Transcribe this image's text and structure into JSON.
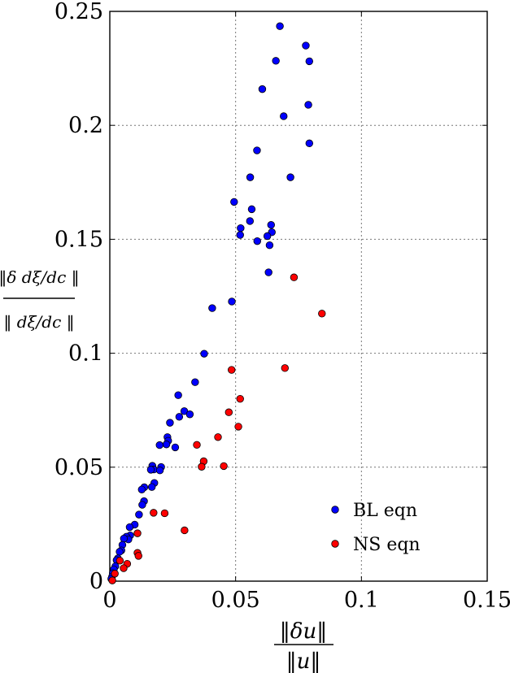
{
  "chart_data": {
    "type": "scatter",
    "xlabel": {
      "numerator": "‖δu‖",
      "denominator": "‖u‖"
    },
    "ylabel": {
      "numerator": "‖δ dξ/dc ‖",
      "denominator": "‖ dξ/dc ‖"
    },
    "xlim": [
      0,
      0.15
    ],
    "ylim": [
      0,
      0.25
    ],
    "x_ticks": [
      "0",
      "0.05",
      "0.1",
      "0.15"
    ],
    "y_ticks": [
      "0",
      "0.05",
      "0.1",
      "0.15",
      "0.2",
      "0.25"
    ],
    "grid": true,
    "legend_position": "bottom-right",
    "series": [
      {
        "name": "BL eqn",
        "color": "#0000ff",
        "points": [
          [
            0.0676,
            0.2435
          ],
          [
            0.0779,
            0.235
          ],
          [
            0.066,
            0.2283
          ],
          [
            0.0793,
            0.2281
          ],
          [
            0.0606,
            0.2159
          ],
          [
            0.0789,
            0.209
          ],
          [
            0.0691,
            0.204
          ],
          [
            0.0793,
            0.1921
          ],
          [
            0.0585,
            0.189
          ],
          [
            0.0558,
            0.1772
          ],
          [
            0.0718,
            0.1772
          ],
          [
            0.0494,
            0.1664
          ],
          [
            0.0564,
            0.1632
          ],
          [
            0.0557,
            0.158
          ],
          [
            0.0641,
            0.1563
          ],
          [
            0.052,
            0.1549
          ],
          [
            0.0644,
            0.1531
          ],
          [
            0.0626,
            0.1514
          ],
          [
            0.0518,
            0.1519
          ],
          [
            0.0586,
            0.1492
          ],
          [
            0.0635,
            0.1474
          ],
          [
            0.0631,
            0.1355
          ],
          [
            0.0485,
            0.1227
          ],
          [
            0.0407,
            0.1198
          ],
          [
            0.0375,
            0.0998
          ],
          [
            0.0339,
            0.0873
          ],
          [
            0.0272,
            0.0816
          ],
          [
            0.0296,
            0.0746
          ],
          [
            0.0318,
            0.0732
          ],
          [
            0.0276,
            0.0721
          ],
          [
            0.0239,
            0.0695
          ],
          [
            0.0229,
            0.0632
          ],
          [
            0.0232,
            0.0616
          ],
          [
            0.0225,
            0.06
          ],
          [
            0.0198,
            0.0597
          ],
          [
            0.026,
            0.0587
          ],
          [
            0.0204,
            0.0501
          ],
          [
            0.0169,
            0.0506
          ],
          [
            0.0175,
            0.049
          ],
          [
            0.0199,
            0.0486
          ],
          [
            0.0163,
            0.0489
          ],
          [
            0.0177,
            0.0431
          ],
          [
            0.0137,
            0.0412
          ],
          [
            0.0167,
            0.0413
          ],
          [
            0.0127,
            0.0402
          ],
          [
            0.0136,
            0.0351
          ],
          [
            0.0129,
            0.0335
          ],
          [
            0.0099,
            0.0248
          ],
          [
            0.0079,
            0.0237
          ],
          [
            0.0116,
            0.0292
          ],
          [
            0.0081,
            0.0201
          ],
          [
            0.0066,
            0.0195
          ],
          [
            0.0074,
            0.0183
          ],
          [
            0.0056,
            0.0187
          ],
          [
            0.005,
            0.0159
          ],
          [
            0.0046,
            0.0135
          ],
          [
            0.0039,
            0.0129
          ],
          [
            0.0032,
            0.01
          ],
          [
            0.0027,
            0.0092
          ],
          [
            0.0022,
            0.0065
          ],
          [
            0.0016,
            0.0052
          ],
          [
            0.0012,
            0.0035
          ],
          [
            0.0009,
            0.002
          ],
          [
            0.0006,
            0.001
          ]
        ]
      },
      {
        "name": "NS eqn",
        "color": "#ff0000",
        "points": [
          [
            0.0732,
            0.1333
          ],
          [
            0.0843,
            0.1174
          ],
          [
            0.0484,
            0.0927
          ],
          [
            0.0696,
            0.0935
          ],
          [
            0.0518,
            0.08
          ],
          [
            0.0473,
            0.0741
          ],
          [
            0.0511,
            0.0678
          ],
          [
            0.043,
            0.0632
          ],
          [
            0.0346,
            0.0598
          ],
          [
            0.0373,
            0.0526
          ],
          [
            0.0365,
            0.0502
          ],
          [
            0.0453,
            0.0505
          ],
          [
            0.0174,
            0.03
          ],
          [
            0.0218,
            0.0298
          ],
          [
            0.0297,
            0.0223
          ],
          [
            0.011,
            0.021
          ],
          [
            0.011,
            0.0124
          ],
          [
            0.0114,
            0.0111
          ],
          [
            0.004,
            0.009
          ],
          [
            0.0069,
            0.0076
          ],
          [
            0.0055,
            0.0057
          ],
          [
            0.002,
            0.0033
          ],
          [
            0.001,
            0.0003
          ]
        ]
      }
    ]
  }
}
